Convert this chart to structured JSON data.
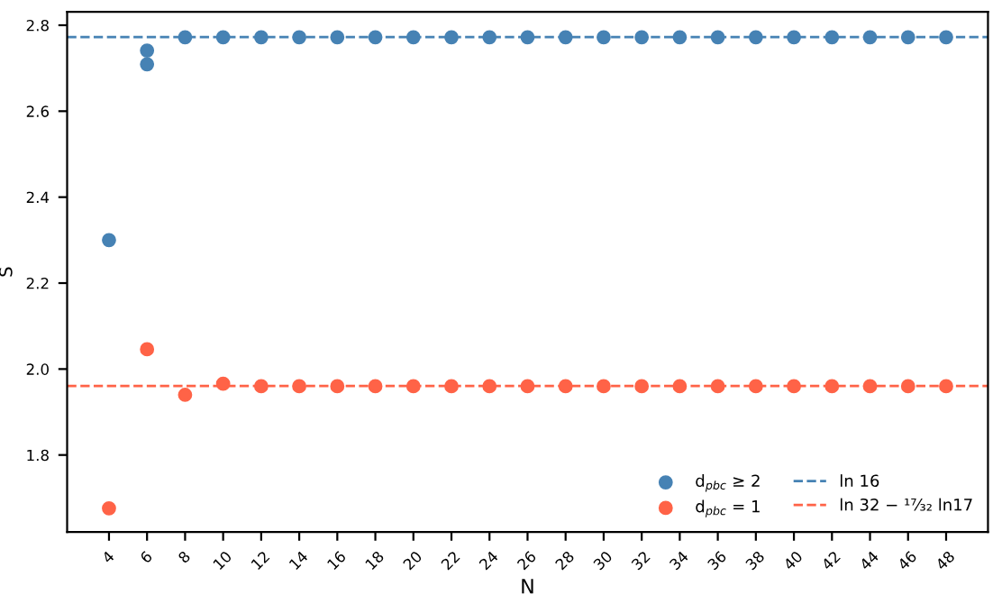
{
  "chart_data": {
    "type": "scatter",
    "xlabel": "N",
    "ylabel": "S",
    "xlim": [
      1.8,
      50.2
    ],
    "ylim": [
      1.621,
      2.831
    ],
    "xticks": [
      4,
      6,
      8,
      10,
      12,
      14,
      16,
      18,
      20,
      22,
      24,
      26,
      28,
      30,
      32,
      34,
      36,
      38,
      40,
      42,
      44,
      46,
      48
    ],
    "yticks": [
      {
        "value": 1.8,
        "label": "1.8"
      },
      {
        "value": 2.0,
        "label": "2.0"
      },
      {
        "value": 2.2,
        "label": "2.2"
      },
      {
        "value": 2.4,
        "label": "2.4"
      },
      {
        "value": 2.6,
        "label": "2.6"
      },
      {
        "value": 2.8,
        "label": "2.8"
      }
    ],
    "series": [
      {
        "name": "d$_{pbc}$ ≥ 2",
        "color": "#4682b4",
        "x": [
          4,
          6,
          6,
          8,
          10,
          12,
          14,
          16,
          18,
          20,
          22,
          24,
          26,
          28,
          30,
          32,
          34,
          36,
          38,
          40,
          42,
          44,
          46,
          48
        ],
        "values": [
          2.3,
          2.741,
          2.709,
          2.772,
          2.772,
          2.772,
          2.772,
          2.772,
          2.772,
          2.772,
          2.772,
          2.772,
          2.772,
          2.772,
          2.772,
          2.772,
          2.772,
          2.772,
          2.772,
          2.772,
          2.772,
          2.772,
          2.772,
          2.772
        ]
      },
      {
        "name": "d$_{pbc}$ = 1",
        "color": "#ff6347",
        "x": [
          4,
          6,
          8,
          10,
          12,
          14,
          16,
          18,
          20,
          22,
          24,
          26,
          28,
          30,
          32,
          34,
          36,
          38,
          40,
          42,
          44,
          46,
          48
        ],
        "values": [
          1.676,
          2.046,
          1.94,
          1.966,
          1.96,
          1.96,
          1.96,
          1.96,
          1.96,
          1.96,
          1.96,
          1.96,
          1.96,
          1.96,
          1.96,
          1.96,
          1.96,
          1.96,
          1.96,
          1.96,
          1.96,
          1.96,
          1.96
        ]
      }
    ],
    "ref_lines": [
      {
        "axis": "y",
        "value": 2.7726,
        "label": "ln 16",
        "color": "#4682b4",
        "line_style": "dashed"
      },
      {
        "axis": "y",
        "value": 1.9606,
        "label": "ln 32 − ¹⁷⁄₃₂ ln17",
        "color": "#ff6347",
        "line_style": "dashed"
      }
    ],
    "marker": "circle",
    "grid": false,
    "legend": "bottom right"
  }
}
